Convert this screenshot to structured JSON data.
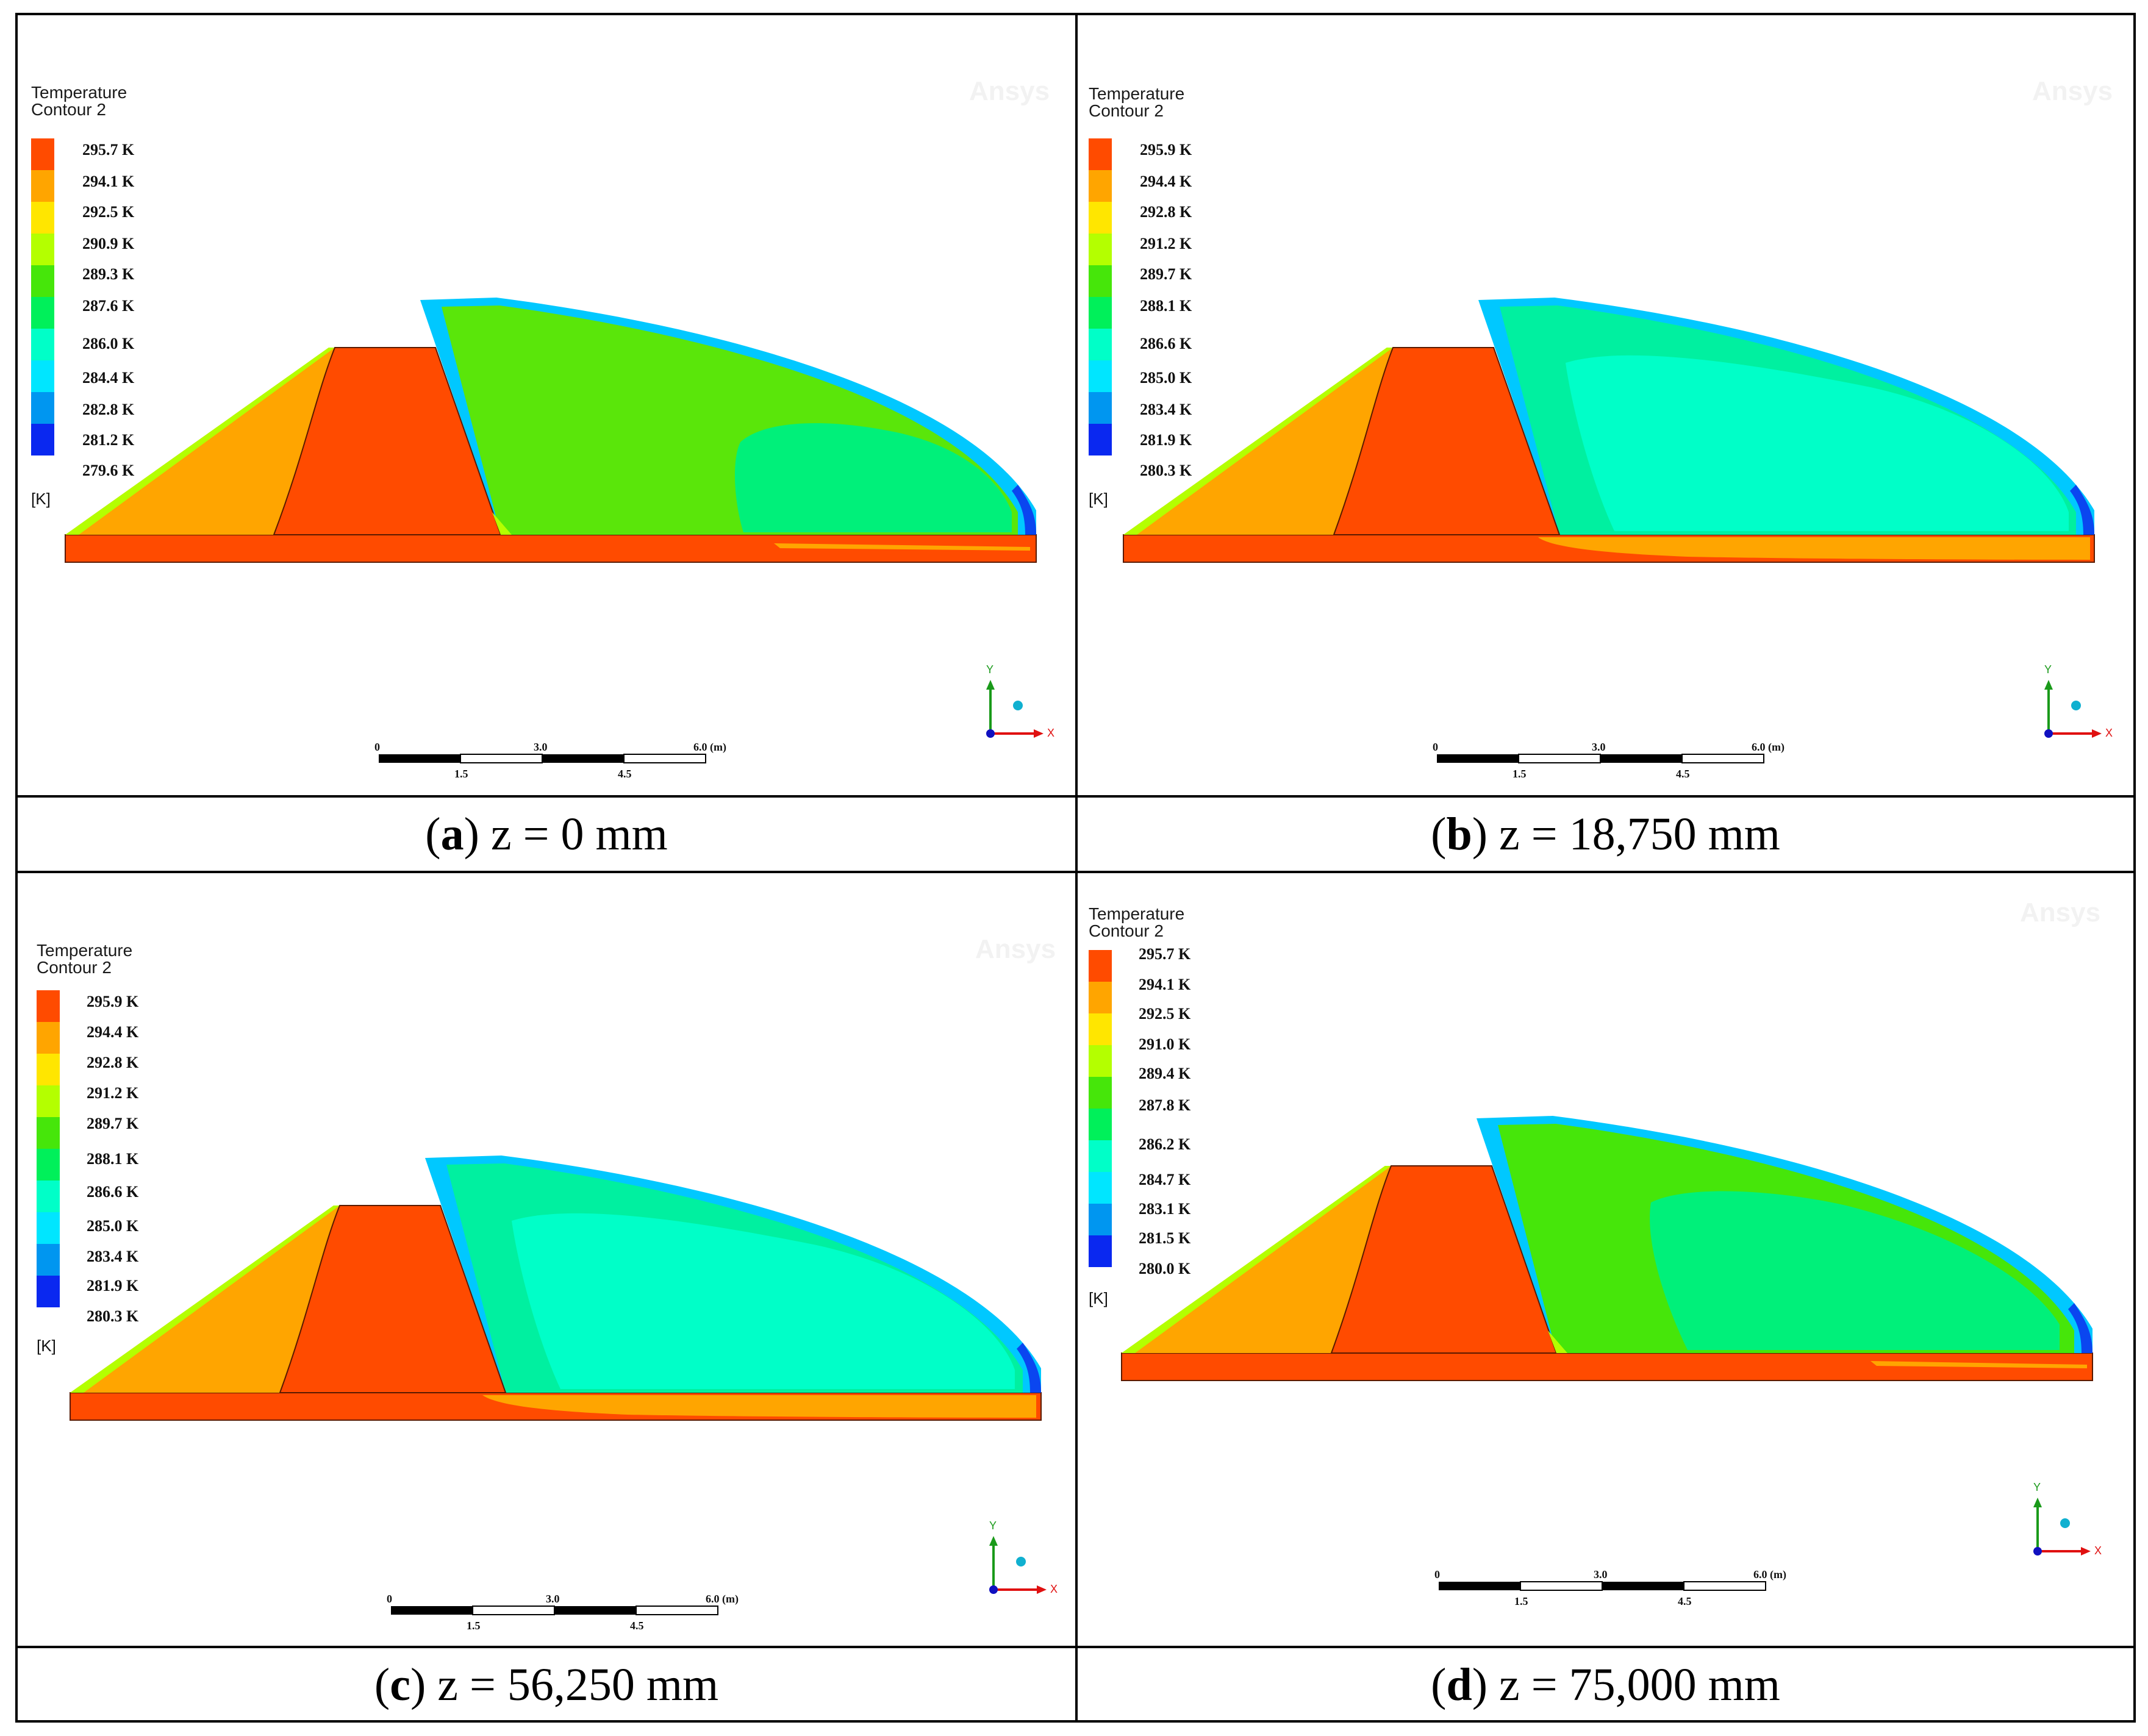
{
  "colormap": [
    "#ff4b00",
    "#ffa500",
    "#ffe600",
    "#b4ff00",
    "#46e60a",
    "#00f05a",
    "#00ffc8",
    "#00e6ff",
    "#0096f0",
    "#0a28f0"
  ],
  "shape_fill": {
    "dam": "#ff4b00",
    "slope": "#ffa500",
    "slope_tip": "#b4ff00",
    "edge_blue": "#00c8ff",
    "edge_dark": "#0a46f0"
  },
  "panels": [
    {
      "id": "a",
      "legend": {
        "title": "Temperature",
        "subtitle": "Contour 2",
        "unit": "[K]",
        "labels": [
          "295.7 K",
          "294.1 K",
          "292.5 K",
          "290.9 K",
          "289.3 K",
          "287.6 K",
          "286.0 K",
          "284.4 K",
          "282.8 K",
          "281.2 K",
          "279.6 K"
        ]
      },
      "watermark": "Ansys",
      "scale": {
        "labels": [
          "0",
          "3.0",
          "6.0 (m)",
          "1.5",
          "4.5"
        ]
      },
      "axes": {
        "y": "Y",
        "x": "X"
      },
      "caption": {
        "letter": "a",
        "text": "z = 0 mm"
      },
      "fill": {
        "body": "#5ae60a",
        "inner": "#00f07a",
        "base_zone": "#ff7a00",
        "base_tint": "#ffa500"
      }
    },
    {
      "id": "b",
      "legend": {
        "title": "Temperature",
        "subtitle": "Contour 2",
        "unit": "[K]",
        "labels": [
          "295.9 K",
          "294.4 K",
          "292.8 K",
          "291.2 K",
          "289.7 K",
          "288.1 K",
          "286.6 K",
          "285.0 K",
          "283.4 K",
          "281.9 K",
          "280.3 K"
        ]
      },
      "watermark": "Ansys",
      "scale": {
        "labels": [
          "0",
          "3.0",
          "6.0 (m)",
          "1.5",
          "4.5"
        ]
      },
      "axes": {
        "y": "Y",
        "x": "X"
      },
      "caption": {
        "letter": "b",
        "text": "z = 18,750 mm"
      },
      "fill": {
        "body": "#00f0a0",
        "inner": "#00ffc8",
        "base_zone": "#ffa500",
        "base_tint": "#ffb400"
      }
    },
    {
      "id": "c",
      "legend": {
        "title": "Temperature",
        "subtitle": "Contour 2",
        "unit": "[K]",
        "labels": [
          "295.9 K",
          "294.4 K",
          "292.8 K",
          "291.2 K",
          "289.7 K",
          "288.1 K",
          "286.6 K",
          "285.0 K",
          "283.4 K",
          "281.9 K",
          "280.3 K"
        ]
      },
      "watermark": "Ansys",
      "scale": {
        "labels": [
          "0",
          "3.0",
          "6.0 (m)",
          "1.5",
          "4.5"
        ]
      },
      "axes": {
        "y": "Y",
        "x": "X"
      },
      "caption": {
        "letter": "c",
        "text": "z = 56,250 mm"
      },
      "fill": {
        "body": "#00f0a0",
        "inner": "#00ffc8",
        "base_zone": "#ffa500",
        "base_tint": "#ffb400"
      }
    },
    {
      "id": "d",
      "legend": {
        "title": "Temperature",
        "subtitle": "Contour 2",
        "unit": "[K]",
        "labels": [
          "295.7 K",
          "294.1 K",
          "292.5 K",
          "291.0 K",
          "289.4 K",
          "287.8 K",
          "286.2 K",
          "284.7 K",
          "283.1 K",
          "281.5 K",
          "280.0 K"
        ]
      },
      "watermark": "Ansys",
      "scale": {
        "labels": [
          "0",
          "3.0",
          "6.0 (m)",
          "1.5",
          "4.5"
        ]
      },
      "axes": {
        "y": "Y",
        "x": "X"
      },
      "caption": {
        "letter": "d",
        "text": "z = 75,000 mm"
      },
      "fill": {
        "body": "#46e60a",
        "inner": "#00f07a",
        "base_zone": "#ff7a00",
        "base_tint": "#ffa500"
      }
    }
  ]
}
